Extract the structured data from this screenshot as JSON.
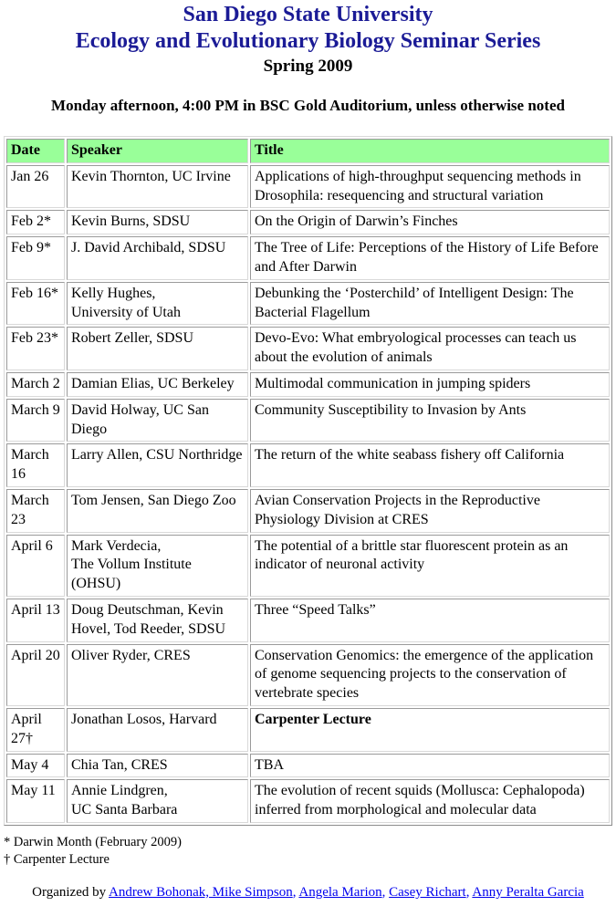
{
  "header": {
    "title_line1": "San Diego State University",
    "title_line2": "Ecology and Evolutionary Biology Seminar Series",
    "title_line3": "Spring 2009",
    "subtitle": "Monday afternoon, 4:00 PM in BSC Gold Auditorium, unless otherwise noted",
    "title_color": "#1b1b96"
  },
  "table": {
    "header_bg": "#99ff99",
    "columns": [
      "Date",
      "Speaker",
      "Title"
    ],
    "rows": [
      {
        "date": "Jan 26",
        "speaker": "Kevin Thornton, UC Irvine",
        "title": "Applications of high-throughput sequencing methods in Drosophila: resequencing and structural variation"
      },
      {
        "date": "Feb 2*",
        "speaker": "Kevin Burns, SDSU",
        "title": "On the Origin of Darwin’s Finches"
      },
      {
        "date": "Feb 9*",
        "speaker": "J. David Archibald, SDSU",
        "title": "The Tree of Life: Perceptions of the History of Life Before and After Darwin"
      },
      {
        "date": "Feb 16*",
        "speaker": "Kelly Hughes,\nUniversity of Utah",
        "title": "Debunking the ‘Posterchild’ of Intelligent Design: The Bacterial Flagellum"
      },
      {
        "date": "Feb 23*",
        "speaker": "Robert Zeller, SDSU",
        "title": "Devo-Evo: What embryological processes can teach us about the evolution of animals"
      },
      {
        "date": "March 2",
        "speaker": "Damian Elias, UC Berkeley",
        "title": "Multimodal communication in jumping spiders"
      },
      {
        "date": "March 9",
        "speaker": "David Holway, UC San\nDiego",
        "title": "Community Susceptibility to Invasion by Ants"
      },
      {
        "date": "March 16",
        "speaker": "Larry Allen, CSU Northridge",
        "title": "The return of the white seabass fishery off California"
      },
      {
        "date": "March 23",
        "speaker": "Tom Jensen, San Diego Zoo",
        "title": "Avian Conservation Projects in the Reproductive Physiology Division at CRES"
      },
      {
        "date": "April 6",
        "speaker": "Mark Verdecia,\nThe Vollum Institute (OHSU)",
        "title": "The potential of a brittle star fluorescent protein as an indicator of neuronal activity"
      },
      {
        "date": "April 13",
        "speaker": "Doug Deutschman, Kevin\nHovel, Tod Reeder, SDSU",
        "title": "Three “Speed Talks”"
      },
      {
        "date": "April 20",
        "speaker": "Oliver Ryder, CRES",
        "title": "Conservation Genomics: the emergence of the application of genome sequencing projects to the conservation of vertebrate species"
      },
      {
        "date": "April 27†",
        "speaker": "Jonathan Losos, Harvard",
        "title": "Carpenter Lecture"
      },
      {
        "date": "May 4",
        "speaker": "Chia Tan, CRES",
        "title": "TBA"
      },
      {
        "date": "May 11",
        "speaker": "Annie Lindgren,\nUC Santa Barbara",
        "title": "The evolution of recent squids (Mollusca: Cephalopoda) inferred from morphological and molecular data"
      }
    ]
  },
  "footnotes": {
    "line1": "* Darwin Month (February 2009)",
    "line2": "† Carpenter Lecture"
  },
  "footer": {
    "prefix": "Organized by ",
    "links": [
      "Andrew Bohonak, Mike Simpson",
      "Angela Marion",
      "Casey Richart",
      "Anny Peralta Garcia"
    ],
    "separator": ", ",
    "link_color": "#0000ee"
  }
}
